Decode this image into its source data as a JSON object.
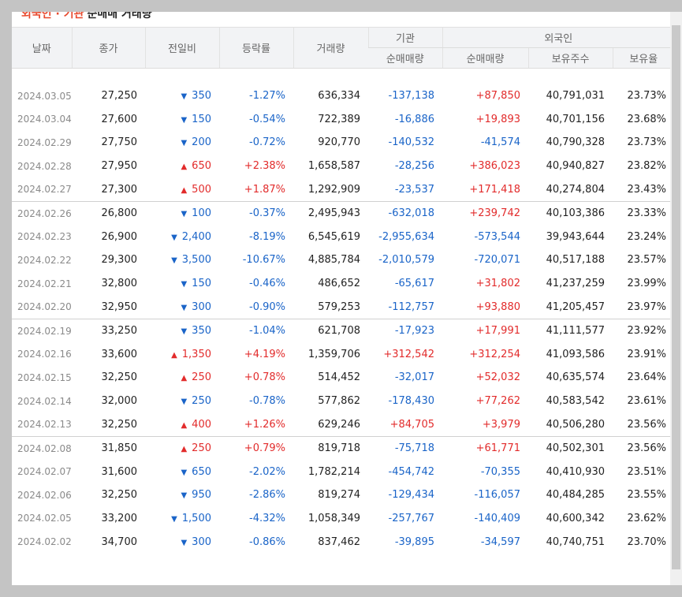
{
  "title": {
    "accent": "외국인 · 기관",
    "rest": "순매매 거래량"
  },
  "headers": {
    "date": "날짜",
    "close": "종가",
    "change": "전일비",
    "rate": "등락률",
    "volume": "거래량",
    "inst_group": "기관",
    "foreign_group": "외국인",
    "inst_net": "순매매량",
    "foreign_net": "순매매량",
    "holdings": "보유주수",
    "ratio": "보유율"
  },
  "colors": {
    "up": "#e22b2b",
    "down": "#1a64c8"
  },
  "groups": [
    [
      {
        "date": "2024.03.05",
        "close": "27,250",
        "dir": "down",
        "change": "350",
        "rate": "-1.27%",
        "volume": "636,334",
        "inst": "-137,138",
        "foreign": "+87,850",
        "holdings": "40,791,031",
        "ratio": "23.73%"
      },
      {
        "date": "2024.03.04",
        "close": "27,600",
        "dir": "down",
        "change": "150",
        "rate": "-0.54%",
        "volume": "722,389",
        "inst": "-16,886",
        "foreign": "+19,893",
        "holdings": "40,701,156",
        "ratio": "23.68%"
      },
      {
        "date": "2024.02.29",
        "close": "27,750",
        "dir": "down",
        "change": "200",
        "rate": "-0.72%",
        "volume": "920,770",
        "inst": "-140,532",
        "foreign": "-41,574",
        "holdings": "40,790,328",
        "ratio": "23.73%"
      },
      {
        "date": "2024.02.28",
        "close": "27,950",
        "dir": "up",
        "change": "650",
        "rate": "+2.38%",
        "volume": "1,658,587",
        "inst": "-28,256",
        "foreign": "+386,023",
        "holdings": "40,940,827",
        "ratio": "23.82%"
      },
      {
        "date": "2024.02.27",
        "close": "27,300",
        "dir": "up",
        "change": "500",
        "rate": "+1.87%",
        "volume": "1,292,909",
        "inst": "-23,537",
        "foreign": "+171,418",
        "holdings": "40,274,804",
        "ratio": "23.43%"
      }
    ],
    [
      {
        "date": "2024.02.26",
        "close": "26,800",
        "dir": "down",
        "change": "100",
        "rate": "-0.37%",
        "volume": "2,495,943",
        "inst": "-632,018",
        "foreign": "+239,742",
        "holdings": "40,103,386",
        "ratio": "23.33%"
      },
      {
        "date": "2024.02.23",
        "close": "26,900",
        "dir": "down",
        "change": "2,400",
        "rate": "-8.19%",
        "volume": "6,545,619",
        "inst": "-2,955,634",
        "foreign": "-573,544",
        "holdings": "39,943,644",
        "ratio": "23.24%"
      },
      {
        "date": "2024.02.22",
        "close": "29,300",
        "dir": "down",
        "change": "3,500",
        "rate": "-10.67%",
        "volume": "4,885,784",
        "inst": "-2,010,579",
        "foreign": "-720,071",
        "holdings": "40,517,188",
        "ratio": "23.57%"
      },
      {
        "date": "2024.02.21",
        "close": "32,800",
        "dir": "down",
        "change": "150",
        "rate": "-0.46%",
        "volume": "486,652",
        "inst": "-65,617",
        "foreign": "+31,802",
        "holdings": "41,237,259",
        "ratio": "23.99%"
      },
      {
        "date": "2024.02.20",
        "close": "32,950",
        "dir": "down",
        "change": "300",
        "rate": "-0.90%",
        "volume": "579,253",
        "inst": "-112,757",
        "foreign": "+93,880",
        "holdings": "41,205,457",
        "ratio": "23.97%"
      }
    ],
    [
      {
        "date": "2024.02.19",
        "close": "33,250",
        "dir": "down",
        "change": "350",
        "rate": "-1.04%",
        "volume": "621,708",
        "inst": "-17,923",
        "foreign": "+17,991",
        "holdings": "41,111,577",
        "ratio": "23.92%"
      },
      {
        "date": "2024.02.16",
        "close": "33,600",
        "dir": "up",
        "change": "1,350",
        "rate": "+4.19%",
        "volume": "1,359,706",
        "inst": "+312,542",
        "foreign": "+312,254",
        "holdings": "41,093,586",
        "ratio": "23.91%"
      },
      {
        "date": "2024.02.15",
        "close": "32,250",
        "dir": "up",
        "change": "250",
        "rate": "+0.78%",
        "volume": "514,452",
        "inst": "-32,017",
        "foreign": "+52,032",
        "holdings": "40,635,574",
        "ratio": "23.64%"
      },
      {
        "date": "2024.02.14",
        "close": "32,000",
        "dir": "down",
        "change": "250",
        "rate": "-0.78%",
        "volume": "577,862",
        "inst": "-178,430",
        "foreign": "+77,262",
        "holdings": "40,583,542",
        "ratio": "23.61%"
      },
      {
        "date": "2024.02.13",
        "close": "32,250",
        "dir": "up",
        "change": "400",
        "rate": "+1.26%",
        "volume": "629,246",
        "inst": "+84,705",
        "foreign": "+3,979",
        "holdings": "40,506,280",
        "ratio": "23.56%"
      }
    ],
    [
      {
        "date": "2024.02.08",
        "close": "31,850",
        "dir": "up",
        "change": "250",
        "rate": "+0.79%",
        "volume": "819,718",
        "inst": "-75,718",
        "foreign": "+61,771",
        "holdings": "40,502,301",
        "ratio": "23.56%"
      },
      {
        "date": "2024.02.07",
        "close": "31,600",
        "dir": "down",
        "change": "650",
        "rate": "-2.02%",
        "volume": "1,782,214",
        "inst": "-454,742",
        "foreign": "-70,355",
        "holdings": "40,410,930",
        "ratio": "23.51%"
      },
      {
        "date": "2024.02.06",
        "close": "32,250",
        "dir": "down",
        "change": "950",
        "rate": "-2.86%",
        "volume": "819,274",
        "inst": "-129,434",
        "foreign": "-116,057",
        "holdings": "40,484,285",
        "ratio": "23.55%"
      },
      {
        "date": "2024.02.05",
        "close": "33,200",
        "dir": "down",
        "change": "1,500",
        "rate": "-4.32%",
        "volume": "1,058,349",
        "inst": "-257,767",
        "foreign": "-140,409",
        "holdings": "40,600,342",
        "ratio": "23.62%"
      },
      {
        "date": "2024.02.02",
        "close": "34,700",
        "dir": "down",
        "change": "300",
        "rate": "-0.86%",
        "volume": "837,462",
        "inst": "-39,895",
        "foreign": "-34,597",
        "holdings": "40,740,751",
        "ratio": "23.70%"
      }
    ]
  ]
}
